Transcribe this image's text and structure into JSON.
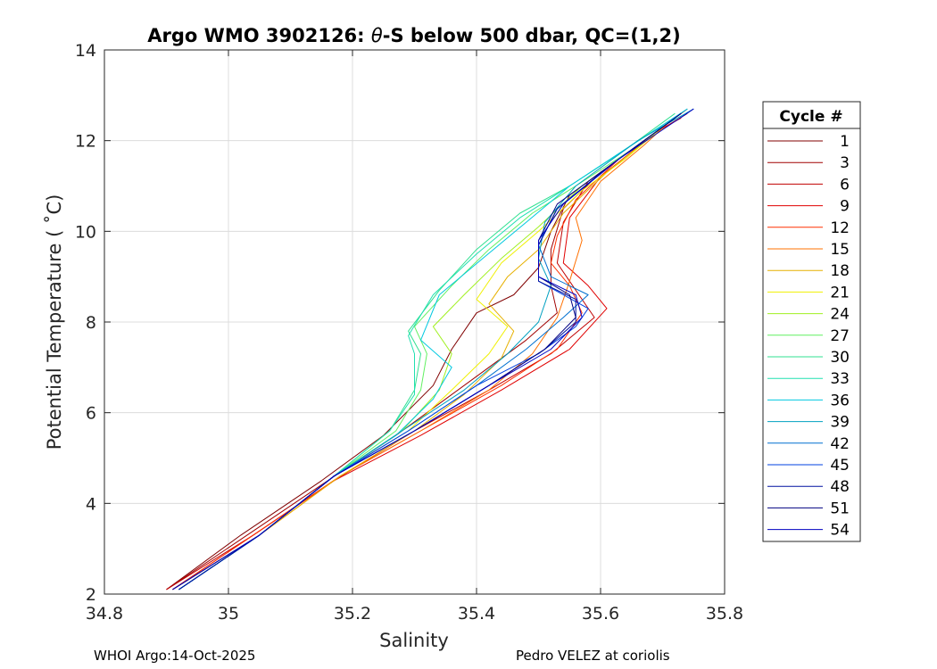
{
  "chart_data": {
    "type": "line",
    "title": "Argo WMO 3902126: θ-S below 500 dbar,  QC=(1,2)",
    "title_parts": [
      "Argo WMO 3902126: ",
      "θ",
      "-S below 500 dbar,  QC=(1,2)"
    ],
    "xlabel": "Salinity",
    "ylabel": "Potential Temperature ( ˚C)",
    "xlim": [
      34.8,
      35.8
    ],
    "ylim": [
      2,
      14
    ],
    "xticks": [
      "34.8",
      "35",
      "35.2",
      "35.4",
      "35.6",
      "35.8"
    ],
    "xtick_values": [
      34.8,
      35.0,
      35.2,
      35.4,
      35.6,
      35.8
    ],
    "yticks": [
      "2",
      "4",
      "6",
      "8",
      "10",
      "12",
      "14"
    ],
    "ytick_values": [
      2,
      4,
      6,
      8,
      10,
      12,
      14
    ],
    "grid": true,
    "legend": {
      "title": "Cycle #",
      "placement": "outside-right",
      "entries": [
        {
          "label": "1",
          "color": "#800000"
        },
        {
          "label": "3",
          "color": "#a00000"
        },
        {
          "label": "6",
          "color": "#c00000"
        },
        {
          "label": "9",
          "color": "#e00000"
        },
        {
          "label": "12",
          "color": "#ff3000"
        },
        {
          "label": "15",
          "color": "#ff7000"
        },
        {
          "label": "18",
          "color": "#e6b000"
        },
        {
          "label": "21",
          "color": "#f0f000"
        },
        {
          "label": "24",
          "color": "#a0f020"
        },
        {
          "label": "27",
          "color": "#60f060"
        },
        {
          "label": "30",
          "color": "#30e090"
        },
        {
          "label": "33",
          "color": "#20e0b0"
        },
        {
          "label": "36",
          "color": "#00c8e0"
        },
        {
          "label": "39",
          "color": "#00a0c0"
        },
        {
          "label": "42",
          "color": "#0070d0"
        },
        {
          "label": "45",
          "color": "#0040e0"
        },
        {
          "label": "48",
          "color": "#0010a0"
        },
        {
          "label": "51",
          "color": "#000080"
        },
        {
          "label": "54",
          "color": "#0000c0"
        }
      ]
    },
    "series": [
      {
        "color": "#800000",
        "points": [
          [
            34.9,
            2.1
          ],
          [
            35.02,
            3.3
          ],
          [
            35.15,
            4.5
          ],
          [
            35.25,
            5.5
          ],
          [
            35.33,
            6.6
          ],
          [
            35.36,
            7.4
          ],
          [
            35.4,
            8.2
          ],
          [
            35.46,
            8.6
          ],
          [
            35.5,
            9.2
          ],
          [
            35.52,
            10.0
          ],
          [
            35.55,
            10.8
          ],
          [
            35.62,
            11.5
          ],
          [
            35.7,
            12.3
          ],
          [
            35.74,
            12.7
          ]
        ]
      },
      {
        "color": "#a00000",
        "points": [
          [
            34.9,
            2.1
          ],
          [
            35.03,
            3.3
          ],
          [
            35.16,
            4.5
          ],
          [
            35.27,
            5.5
          ],
          [
            35.36,
            6.4
          ],
          [
            35.42,
            7.0
          ],
          [
            35.48,
            7.6
          ],
          [
            35.53,
            8.2
          ],
          [
            35.52,
            8.8
          ],
          [
            35.52,
            9.6
          ],
          [
            35.54,
            10.5
          ],
          [
            35.6,
            11.3
          ],
          [
            35.69,
            12.2
          ],
          [
            35.73,
            12.6
          ]
        ]
      },
      {
        "color": "#c00000",
        "points": [
          [
            34.9,
            2.1
          ],
          [
            35.04,
            3.3
          ],
          [
            35.17,
            4.5
          ],
          [
            35.3,
            5.6
          ],
          [
            35.42,
            6.5
          ],
          [
            35.52,
            7.3
          ],
          [
            35.59,
            8.1
          ],
          [
            35.56,
            8.7
          ],
          [
            35.53,
            9.3
          ],
          [
            35.54,
            10.2
          ],
          [
            35.58,
            11.1
          ],
          [
            35.68,
            12.1
          ],
          [
            35.74,
            12.6
          ]
        ]
      },
      {
        "color": "#e00000",
        "points": [
          [
            34.91,
            2.1
          ],
          [
            35.04,
            3.3
          ],
          [
            35.17,
            4.5
          ],
          [
            35.31,
            5.5
          ],
          [
            35.44,
            6.5
          ],
          [
            35.55,
            7.4
          ],
          [
            35.61,
            8.3
          ],
          [
            35.58,
            8.8
          ],
          [
            35.54,
            9.3
          ],
          [
            35.55,
            10.3
          ],
          [
            35.6,
            11.2
          ],
          [
            35.69,
            12.2
          ],
          [
            35.73,
            12.5
          ]
        ]
      },
      {
        "color": "#ff3000",
        "points": [
          [
            34.91,
            2.1
          ],
          [
            35.04,
            3.3
          ],
          [
            35.18,
            4.6
          ],
          [
            35.31,
            5.6
          ],
          [
            35.44,
            6.6
          ],
          [
            35.53,
            7.4
          ],
          [
            35.57,
            8.2
          ],
          [
            35.55,
            8.8
          ],
          [
            35.52,
            9.3
          ],
          [
            35.53,
            9.9
          ],
          [
            35.56,
            10.7
          ],
          [
            35.63,
            11.6
          ],
          [
            35.72,
            12.5
          ]
        ]
      },
      {
        "color": "#ff7000",
        "points": [
          [
            34.91,
            2.1
          ],
          [
            35.05,
            3.3
          ],
          [
            35.18,
            4.6
          ],
          [
            35.31,
            5.6
          ],
          [
            35.42,
            6.5
          ],
          [
            35.49,
            7.3
          ],
          [
            35.53,
            8.1
          ],
          [
            35.55,
            8.9
          ],
          [
            35.57,
            9.8
          ],
          [
            35.56,
            10.3
          ],
          [
            35.6,
            11.1
          ],
          [
            35.67,
            11.9
          ],
          [
            35.71,
            12.4
          ]
        ]
      },
      {
        "color": "#e6b000",
        "points": [
          [
            34.91,
            2.1
          ],
          [
            35.05,
            3.3
          ],
          [
            35.18,
            4.6
          ],
          [
            35.3,
            5.6
          ],
          [
            35.38,
            6.4
          ],
          [
            35.44,
            7.2
          ],
          [
            35.46,
            7.8
          ],
          [
            35.42,
            8.4
          ],
          [
            35.45,
            9.0
          ],
          [
            35.5,
            9.6
          ],
          [
            35.54,
            10.4
          ],
          [
            35.61,
            11.3
          ],
          [
            35.7,
            12.3
          ]
        ]
      },
      {
        "color": "#f0f000",
        "points": [
          [
            34.92,
            2.1
          ],
          [
            35.05,
            3.3
          ],
          [
            35.17,
            4.6
          ],
          [
            35.29,
            5.6
          ],
          [
            35.36,
            6.5
          ],
          [
            35.42,
            7.3
          ],
          [
            35.45,
            7.9
          ],
          [
            35.4,
            8.5
          ],
          [
            35.44,
            9.3
          ],
          [
            35.5,
            10.0
          ],
          [
            35.57,
            10.9
          ],
          [
            35.64,
            11.6
          ],
          [
            35.7,
            12.3
          ]
        ]
      },
      {
        "color": "#a0f020",
        "points": [
          [
            34.92,
            2.1
          ],
          [
            35.05,
            3.3
          ],
          [
            35.17,
            4.6
          ],
          [
            35.28,
            5.6
          ],
          [
            35.34,
            6.5
          ],
          [
            35.36,
            7.3
          ],
          [
            35.33,
            7.9
          ],
          [
            35.38,
            8.6
          ],
          [
            35.44,
            9.4
          ],
          [
            35.5,
            10.1
          ],
          [
            35.57,
            11.0
          ],
          [
            35.65,
            11.8
          ],
          [
            35.72,
            12.5
          ]
        ]
      },
      {
        "color": "#60f060",
        "points": [
          [
            34.92,
            2.1
          ],
          [
            35.05,
            3.3
          ],
          [
            35.17,
            4.6
          ],
          [
            35.27,
            5.6
          ],
          [
            35.31,
            6.5
          ],
          [
            35.32,
            7.3
          ],
          [
            35.3,
            7.9
          ],
          [
            35.36,
            8.8
          ],
          [
            35.42,
            9.6
          ],
          [
            35.49,
            10.4
          ],
          [
            35.56,
            11.0
          ],
          [
            35.65,
            11.8
          ],
          [
            35.72,
            12.5
          ]
        ]
      },
      {
        "color": "#30e090",
        "points": [
          [
            34.92,
            2.1
          ],
          [
            35.05,
            3.3
          ],
          [
            35.17,
            4.6
          ],
          [
            35.26,
            5.6
          ],
          [
            35.3,
            6.5
          ],
          [
            35.31,
            7.3
          ],
          [
            35.29,
            7.8
          ],
          [
            35.34,
            8.7
          ],
          [
            35.4,
            9.6
          ],
          [
            35.47,
            10.4
          ],
          [
            35.55,
            11.0
          ],
          [
            35.64,
            11.8
          ],
          [
            35.72,
            12.6
          ]
        ]
      },
      {
        "color": "#20e0b0",
        "points": [
          [
            34.92,
            2.1
          ],
          [
            35.05,
            3.3
          ],
          [
            35.17,
            4.6
          ],
          [
            35.26,
            5.6
          ],
          [
            35.3,
            6.4
          ],
          [
            35.3,
            7.3
          ],
          [
            35.29,
            7.7
          ],
          [
            35.33,
            8.6
          ],
          [
            35.4,
            9.5
          ],
          [
            35.47,
            10.3
          ],
          [
            35.55,
            11.0
          ],
          [
            35.65,
            11.9
          ],
          [
            35.73,
            12.6
          ]
        ]
      },
      {
        "color": "#00c8e0",
        "points": [
          [
            34.92,
            2.1
          ],
          [
            35.05,
            3.3
          ],
          [
            35.17,
            4.6
          ],
          [
            35.27,
            5.5
          ],
          [
            35.33,
            6.3
          ],
          [
            35.36,
            7.0
          ],
          [
            35.31,
            7.6
          ],
          [
            35.34,
            8.6
          ],
          [
            35.41,
            9.4
          ],
          [
            35.48,
            10.2
          ],
          [
            35.55,
            11.0
          ],
          [
            35.65,
            11.9
          ],
          [
            35.74,
            12.7
          ]
        ]
      },
      {
        "color": "#00a0c0",
        "points": [
          [
            34.92,
            2.1
          ],
          [
            35.05,
            3.3
          ],
          [
            35.17,
            4.6
          ],
          [
            35.28,
            5.6
          ],
          [
            35.38,
            6.5
          ],
          [
            35.45,
            7.3
          ],
          [
            35.5,
            8.0
          ],
          [
            35.52,
            8.8
          ],
          [
            35.5,
            9.4
          ],
          [
            35.51,
            10.2
          ],
          [
            35.56,
            11.0
          ],
          [
            35.66,
            12.0
          ],
          [
            35.75,
            12.7
          ]
        ]
      },
      {
        "color": "#0070d0",
        "points": [
          [
            34.92,
            2.1
          ],
          [
            35.05,
            3.3
          ],
          [
            35.17,
            4.6
          ],
          [
            35.29,
            5.6
          ],
          [
            35.4,
            6.6
          ],
          [
            35.48,
            7.4
          ],
          [
            35.54,
            8.1
          ],
          [
            35.58,
            8.6
          ],
          [
            35.52,
            9.0
          ],
          [
            35.5,
            9.7
          ],
          [
            35.53,
            10.5
          ],
          [
            35.62,
            11.5
          ],
          [
            35.72,
            12.5
          ]
        ]
      },
      {
        "color": "#0040e0",
        "points": [
          [
            34.92,
            2.1
          ],
          [
            35.05,
            3.3
          ],
          [
            35.17,
            4.6
          ],
          [
            35.29,
            5.6
          ],
          [
            35.4,
            6.6
          ],
          [
            35.5,
            7.3
          ],
          [
            35.56,
            7.9
          ],
          [
            35.58,
            8.3
          ],
          [
            35.5,
            8.9
          ],
          [
            35.5,
            9.7
          ],
          [
            35.53,
            10.5
          ],
          [
            35.62,
            11.5
          ],
          [
            35.72,
            12.5
          ]
        ]
      },
      {
        "color": "#0010a0",
        "points": [
          [
            34.92,
            2.1
          ],
          [
            35.05,
            3.3
          ],
          [
            35.17,
            4.6
          ],
          [
            35.3,
            5.6
          ],
          [
            35.42,
            6.6
          ],
          [
            35.51,
            7.4
          ],
          [
            35.56,
            8.0
          ],
          [
            35.56,
            8.5
          ],
          [
            35.5,
            8.9
          ],
          [
            35.5,
            9.7
          ],
          [
            35.53,
            10.5
          ],
          [
            35.62,
            11.5
          ],
          [
            35.73,
            12.6
          ]
        ]
      },
      {
        "color": "#000080",
        "points": [
          [
            34.91,
            2.1
          ],
          [
            35.05,
            3.3
          ],
          [
            35.17,
            4.6
          ],
          [
            35.3,
            5.6
          ],
          [
            35.42,
            6.6
          ],
          [
            35.51,
            7.4
          ],
          [
            35.56,
            8.1
          ],
          [
            35.55,
            8.6
          ],
          [
            35.5,
            9.0
          ],
          [
            35.5,
            9.8
          ],
          [
            35.53,
            10.6
          ],
          [
            35.62,
            11.5
          ],
          [
            35.73,
            12.6
          ]
        ]
      },
      {
        "color": "#0000c0",
        "points": [
          [
            34.91,
            2.1
          ],
          [
            35.05,
            3.3
          ],
          [
            35.17,
            4.6
          ],
          [
            35.3,
            5.6
          ],
          [
            35.42,
            6.6
          ],
          [
            35.52,
            7.4
          ],
          [
            35.57,
            8.1
          ],
          [
            35.56,
            8.6
          ],
          [
            35.5,
            9.0
          ],
          [
            35.5,
            9.8
          ],
          [
            35.54,
            10.6
          ],
          [
            35.63,
            11.6
          ],
          [
            35.75,
            12.7
          ]
        ]
      }
    ]
  },
  "footer": {
    "left": "WHOI Argo:14-Oct-2025",
    "right": "Pedro VELEZ at coriolis"
  }
}
